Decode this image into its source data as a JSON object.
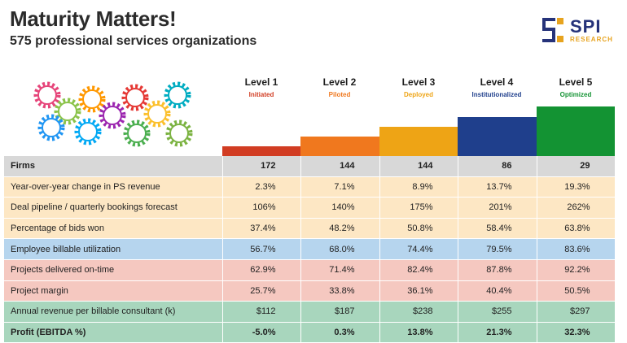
{
  "header": {
    "title": "Maturity Matters!",
    "subtitle": "575 professional services organizations"
  },
  "logo": {
    "name": "SPI",
    "sub": "RESEARCH",
    "color": "#26337a",
    "accent": "#e7a31e"
  },
  "levels": [
    {
      "name": "Level 1",
      "sub": "Initiated",
      "color": "#d13c22"
    },
    {
      "name": "Level 2",
      "sub": "Piloted",
      "color": "#f0781e"
    },
    {
      "name": "Level 3",
      "sub": "Deployed",
      "color": "#eea415"
    },
    {
      "name": "Level 4",
      "sub": "Institutionalized",
      "color": "#1f3f8c"
    },
    {
      "name": "Level 5",
      "sub": "Optimized",
      "color": "#139333"
    }
  ],
  "table": {
    "rows": [
      {
        "label": "Firms",
        "values": [
          "172",
          "144",
          "144",
          "86",
          "29"
        ]
      },
      {
        "label": "Year-over-year change in PS revenue",
        "values": [
          "2.3%",
          "7.1%",
          "8.9%",
          "13.7%",
          "19.3%"
        ]
      },
      {
        "label": "Deal pipeline / quarterly bookings forecast",
        "values": [
          "106%",
          "140%",
          "175%",
          "201%",
          "262%"
        ]
      },
      {
        "label": "Percentage of bids won",
        "values": [
          "37.4%",
          "48.2%",
          "50.8%",
          "58.4%",
          "63.8%"
        ]
      },
      {
        "label": "Employee billable utilization",
        "values": [
          "56.7%",
          "68.0%",
          "74.4%",
          "79.5%",
          "83.6%"
        ]
      },
      {
        "label": "Projects delivered on-time",
        "values": [
          "62.9%",
          "71.4%",
          "82.4%",
          "87.8%",
          "92.2%"
        ]
      },
      {
        "label": "Project margin",
        "values": [
          "25.7%",
          "33.8%",
          "36.1%",
          "40.4%",
          "50.5%"
        ]
      },
      {
        "label": "Annual revenue per billable consultant (k)",
        "values": [
          "$112",
          "$187",
          "$238",
          "$255",
          "$297"
        ]
      },
      {
        "label": "Profit (EBITDA %)",
        "values": [
          "-5.0%",
          "0.3%",
          "13.8%",
          "21.3%",
          "32.3%"
        ]
      }
    ]
  },
  "gears_icon": "gears-cluster-illustration"
}
